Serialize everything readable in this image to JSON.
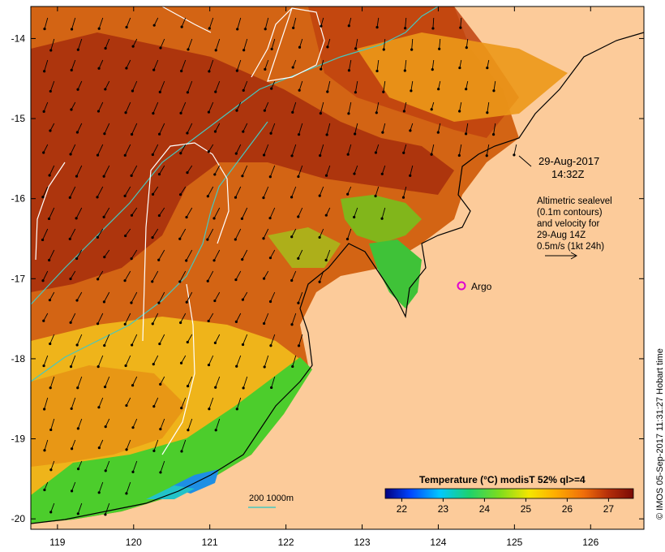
{
  "map": {
    "x_axis_ticks": [
      "119",
      "120",
      "121",
      "122",
      "123",
      "124",
      "125",
      "126"
    ],
    "y_axis_ticks": [
      "-14",
      "-15",
      "-16",
      "-17",
      "-18",
      "-19",
      "-20"
    ],
    "lon_range": [
      118.65,
      126.7
    ],
    "lat_range": [
      -13.6,
      -20.13
    ],
    "colors": {
      "land": "#fccb9a",
      "sst_warm": "#b8340c",
      "sst_orange": "#e98a12",
      "sst_yellow": "#f2c318",
      "sst_green": "#3ecf2f",
      "sst_blue": "#1e7fe0",
      "contour_cyan": "#46c8c0",
      "contour_white": "#ffffff",
      "argo_marker": "#e000d0"
    }
  },
  "annotations": {
    "date_line1": "29-Aug-2017",
    "date_line2": "14:32Z",
    "alt_line1": "Altimetric sealevel",
    "alt_line2": "(0.1m contours)",
    "alt_line3": "and velocity for",
    "alt_line4": "29-Aug 14Z",
    "alt_line5": "0.5m/s (1kt 24h)",
    "argo_label": "Argo",
    "depth_label": "200  1000m"
  },
  "colorbar": {
    "title": "Temperature (°C) modisT 52% ql>=4",
    "ticks": [
      "22",
      "23",
      "24",
      "25",
      "26",
      "27"
    ],
    "range": [
      21.6,
      27.6
    ],
    "stops": [
      "#00007f",
      "#0044ff",
      "#00c8ff",
      "#1ed26c",
      "#7ddc1e",
      "#f5e600",
      "#ffb000",
      "#f06e0a",
      "#b42e0a",
      "#7a0a05"
    ]
  },
  "credit": "© IMOS 05-Sep-2017 11:31:27 Hobart time"
}
